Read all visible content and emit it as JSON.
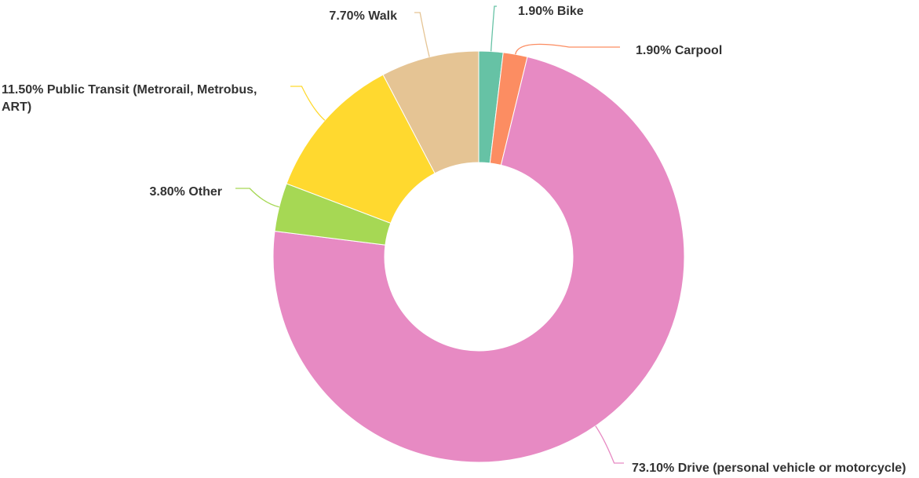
{
  "chart_data": {
    "type": "donut",
    "categories": [
      "Bike",
      "Carpool",
      "Drive (personal vehicle or motorcycle)",
      "Other",
      "Public Transit (Metrorail, Metrobus, ART)",
      "Walk"
    ],
    "values": [
      1.9,
      1.9,
      73.1,
      3.8,
      11.5,
      7.7
    ],
    "value_labels": [
      "1.90%",
      "1.90%",
      "73.10%",
      "3.80%",
      "11.50%",
      "7.70%"
    ],
    "colors": [
      "#66c2a5",
      "#fc8d62",
      "#e78ac3",
      "#a6d854",
      "#ffd92f",
      "#e5c494"
    ]
  }
}
